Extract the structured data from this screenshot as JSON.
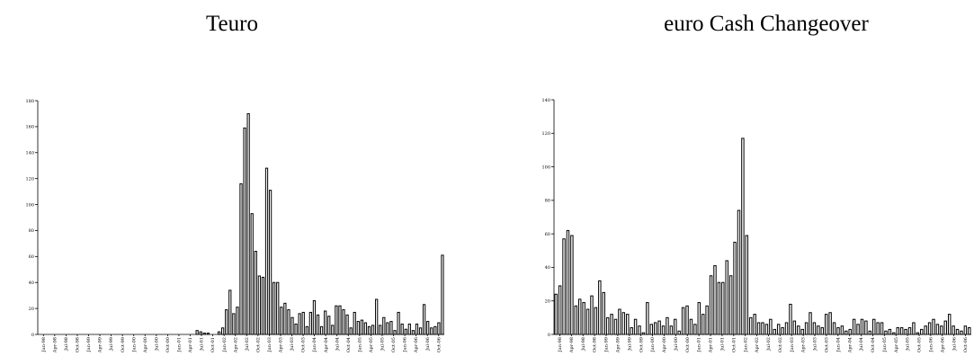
{
  "chart_data": [
    {
      "type": "bar",
      "title": "Teuro",
      "ylim": [
        0,
        180
      ],
      "yticks": [
        0,
        20,
        40,
        60,
        80,
        100,
        120,
        140,
        160,
        180
      ],
      "x_tick_labels": [
        "Jan-98",
        "Apr-98",
        "Jul-98",
        "Oct-98",
        "Jan-99",
        "Apr-99",
        "Jul-99",
        "Oct-99",
        "Jan-00",
        "Apr-00",
        "Jul-00",
        "Oct-00",
        "Jan-01",
        "Apr-01",
        "Jul-01",
        "Oct-01",
        "Jan-02",
        "Apr-02",
        "Jul-02",
        "Oct-02",
        "Jan-03",
        "Apr-03",
        "Jul-03",
        "Oct-03",
        "Jan-04",
        "Apr-04",
        "Jul-04",
        "Oct-04",
        "Jan-05",
        "Apr-05",
        "Jul-05",
        "Oct-05",
        "Jan-06",
        "Apr-06",
        "Jul-06",
        "Oct-06"
      ],
      "values": [
        0,
        0,
        0,
        0,
        0,
        0,
        0,
        0,
        0,
        0,
        0,
        0,
        0,
        0,
        0,
        0,
        0,
        0,
        0,
        0,
        0,
        0,
        0,
        0,
        0,
        0,
        0,
        0,
        0,
        0,
        0,
        0,
        0,
        0,
        0,
        0,
        0,
        0,
        0,
        0,
        0,
        0,
        0,
        3,
        2,
        1,
        1,
        0,
        0,
        2,
        5,
        19,
        34,
        16,
        21,
        116,
        159,
        170,
        93,
        64,
        45,
        44,
        128,
        111,
        40,
        40,
        21,
        24,
        19,
        13,
        8,
        16,
        17,
        6,
        17,
        26,
        15,
        6,
        18,
        14,
        7,
        22,
        22,
        19,
        15,
        5,
        17,
        10,
        11,
        9,
        6,
        7,
        27,
        7,
        13,
        9,
        10,
        3,
        17,
        8,
        4,
        8,
        3,
        8,
        5,
        23,
        10,
        5,
        6,
        9,
        61
      ]
    },
    {
      "type": "bar",
      "title": "euro Cash Changeover",
      "ylim": [
        0,
        140
      ],
      "yticks": [
        0,
        20,
        40,
        60,
        80,
        100,
        120,
        140
      ],
      "x_tick_labels": [
        "Jan-98",
        "Apr-98",
        "Jul-98",
        "Oct-98",
        "Jan-99",
        "Apr-99",
        "Jul-99",
        "Oct-99",
        "Jan-00",
        "Apr-00",
        "Jul-00",
        "Oct-00",
        "Jan-01",
        "Apr-01",
        "Jul-01",
        "Oct-01",
        "Jan-02",
        "Apr-02",
        "Jul-02",
        "Oct-02",
        "Jan-03",
        "Apr-03",
        "Jul-03",
        "Oct-03",
        "Jan-04",
        "Apr-04",
        "Jul-04",
        "Oct-04",
        "Jan-05",
        "Apr-05",
        "Jul-05",
        "Oct-05",
        "Jan-06",
        "Apr-06",
        "Jul-06",
        "Oct-06"
      ],
      "values": [
        24,
        29,
        57,
        62,
        59,
        17,
        21,
        19,
        15,
        23,
        16,
        32,
        25,
        10,
        12,
        9,
        15,
        13,
        12,
        4,
        9,
        5,
        1,
        19,
        6,
        7,
        8,
        5,
        10,
        5,
        9,
        2,
        16,
        17,
        9,
        6,
        19,
        12,
        17,
        35,
        41,
        31,
        31,
        44,
        35,
        55,
        74,
        117,
        59,
        10,
        12,
        7,
        7,
        6,
        9,
        3,
        6,
        4,
        7,
        18,
        8,
        5,
        3,
        7,
        13,
        7,
        5,
        4,
        12,
        13,
        7,
        4,
        5,
        2,
        3,
        9,
        6,
        9,
        8,
        2,
        9,
        7,
        7,
        2,
        3,
        1,
        4,
        4,
        3,
        4,
        7,
        1,
        3,
        5,
        7,
        9,
        6,
        5,
        8,
        12,
        5,
        3,
        2,
        5,
        4
      ]
    }
  ]
}
